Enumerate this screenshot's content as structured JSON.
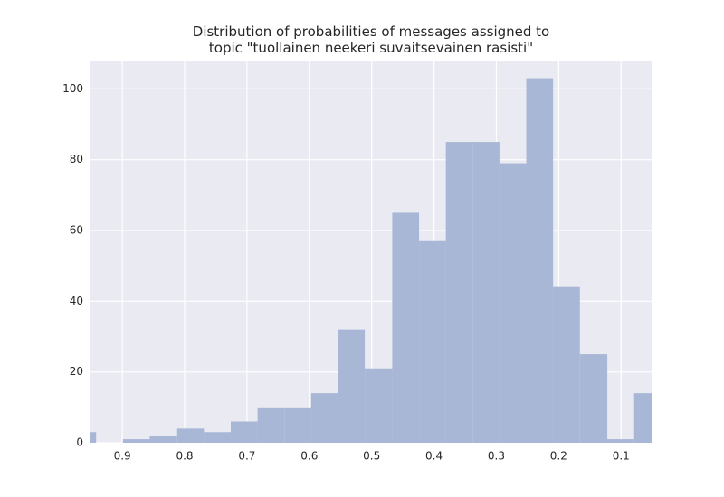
{
  "chart_data": {
    "type": "histogram",
    "title": "Distribution of probabilities of messages assigned to\ntopic \"tuollainen neekeri suvaitsevainen rasisti\"",
    "bins": [
      0.036,
      0.079,
      0.122,
      0.166,
      0.209,
      0.252,
      0.295,
      0.338,
      0.381,
      0.424,
      0.467,
      0.511,
      0.554,
      0.597,
      0.64,
      0.683,
      0.726,
      0.769,
      0.812,
      0.856,
      0.899,
      0.942,
      0.985
    ],
    "counts": [
      14,
      1,
      25,
      44,
      103,
      79,
      85,
      85,
      57,
      65,
      21,
      32,
      14,
      10,
      10,
      6,
      3,
      4,
      2,
      1,
      0,
      3
    ],
    "color": "#a8b7d6",
    "xlim": [
      0.951,
      0.051
    ],
    "xticks": [
      0.9,
      0.8,
      0.7,
      0.6,
      0.5,
      0.4,
      0.3,
      0.2,
      0.1
    ],
    "ylim": [
      0,
      108
    ],
    "yticks": [
      0,
      20,
      40,
      60,
      80,
      100
    ],
    "grid": true
  }
}
